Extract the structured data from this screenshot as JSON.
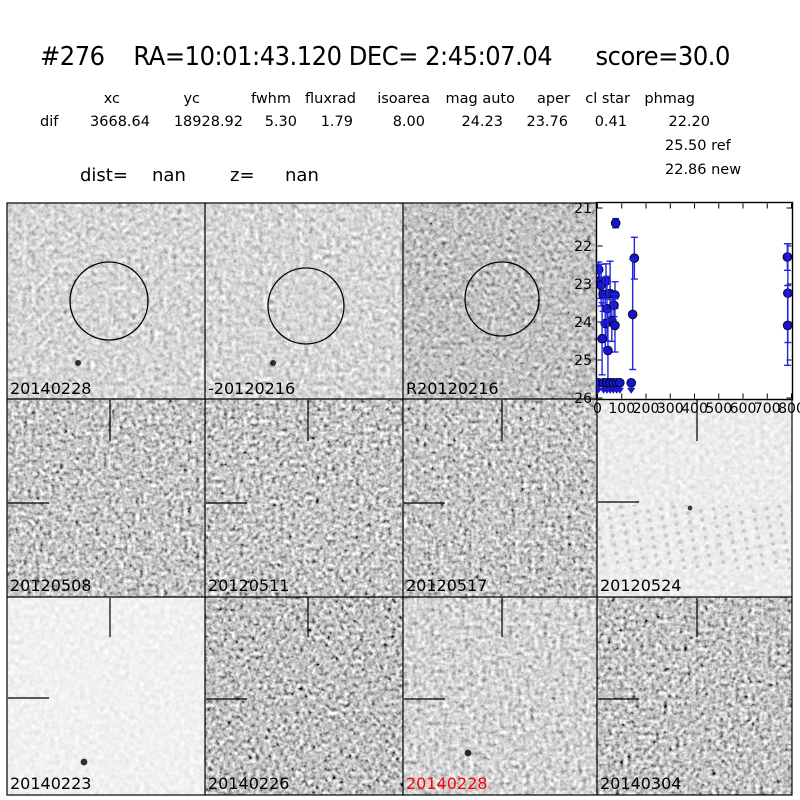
{
  "header": {
    "title": "#276    RA=10:01:43.120 DEC= 2:45:07.04      score=30.0",
    "dist_label": "dist=",
    "dist_value": "nan",
    "z_label": "z=",
    "z_value": "nan"
  },
  "photometry": {
    "headers": [
      "xc",
      "yc",
      "fwhm",
      "fluxrad",
      "isoarea",
      "mag auto",
      "aper",
      "cl star",
      "phmag"
    ],
    "row_label": "dif",
    "values": [
      "3668.64",
      "18928.92",
      "5.30",
      "1.79",
      "8.00",
      "24.23",
      "23.76",
      "0.41",
      "22.20"
    ],
    "ref_line": "25.50 ref",
    "new_line": "22.86 new"
  },
  "grid": {
    "panels": [
      {
        "label": "20140228",
        "label_color": "#000000",
        "annotation": "circle"
      },
      {
        "label": "-20120216",
        "label_color": "#000000",
        "annotation": "circle"
      },
      {
        "label": "R20120216",
        "label_color": "#000000",
        "annotation": "circle"
      },
      {
        "label": "20120508",
        "label_color": "#000000",
        "annotation": "crosshair"
      },
      {
        "label": "20120511",
        "label_color": "#000000",
        "annotation": "crosshair"
      },
      {
        "label": "20120517",
        "label_color": "#000000",
        "annotation": "crosshair"
      },
      {
        "label": "20120524",
        "label_color": "#000000",
        "annotation": "crosshair"
      },
      {
        "label": "20140223",
        "label_color": "#000000",
        "annotation": "crosshair"
      },
      {
        "label": "20140226",
        "label_color": "#000000",
        "annotation": "crosshair"
      },
      {
        "label": "20140228",
        "label_color": "#ff0000",
        "annotation": "crosshair"
      },
      {
        "label": "20140304",
        "label_color": "#000000",
        "annotation": "crosshair"
      }
    ]
  },
  "chart_data": {
    "type": "scatter",
    "title": "",
    "xlabel": "",
    "ylabel": "",
    "xlim": [
      0,
      800
    ],
    "ylim": [
      26,
      21
    ],
    "y_inverted": true,
    "grid": false,
    "legend": null,
    "xticks": [
      0,
      100,
      200,
      300,
      400,
      500,
      600,
      700,
      800
    ],
    "yticks": [
      21,
      22,
      23,
      24,
      25,
      26
    ],
    "marker_color": "#1515cf",
    "errorbar_color": "#2525e0",
    "points": [
      {
        "x": 75,
        "mag": 21.4,
        "err": 0.12
      },
      {
        "x": 152,
        "mag": 22.32,
        "err": 0.55
      },
      {
        "x": 5,
        "mag": 22.62,
        "err": 0.2
      },
      {
        "x": 8,
        "mag": 22.93,
        "err": 0.45
      },
      {
        "x": 15,
        "mag": 23.03,
        "err": 0.55
      },
      {
        "x": 35,
        "mag": 22.92,
        "err": 0.45
      },
      {
        "x": 23,
        "mag": 23.27,
        "err": 0.45
      },
      {
        "x": 52,
        "mag": 23.25,
        "err": 0.85
      },
      {
        "x": 72,
        "mag": 23.29,
        "err": 0.35
      },
      {
        "x": 39,
        "mag": 23.65,
        "err": 0.85
      },
      {
        "x": 68,
        "mag": 23.56,
        "err": 0.3
      },
      {
        "x": 145,
        "mag": 23.8,
        "err": 1.45
      },
      {
        "x": 59,
        "mag": 23.96,
        "err": 0.55
      },
      {
        "x": 32,
        "mag": 24.04,
        "err": 0.65
      },
      {
        "x": 72,
        "mag": 24.09,
        "err": 0.7
      },
      {
        "x": 19,
        "mag": 24.44,
        "err": 0.95
      },
      {
        "x": 43,
        "mag": 24.75,
        "err": 1.05
      },
      {
        "x": 783,
        "mag": 22.29,
        "err": 0.35
      },
      {
        "x": 785,
        "mag": 23.24,
        "err": 1.3
      },
      {
        "x": 784,
        "mag": 24.09,
        "err": 1.05
      }
    ],
    "upper_limits": {
      "mag": 25.6,
      "x": [
        3,
        25,
        39,
        52,
        65,
        79,
        92,
        139
      ]
    }
  }
}
